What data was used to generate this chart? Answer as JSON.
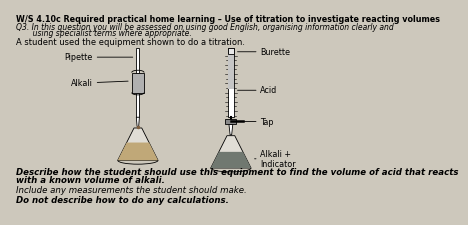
{
  "background_color": "#cdc8bc",
  "title_line": "W/S 4.10c Required practical home learning – Use of titration to investigate reacting volumes",
  "q3_line1": "Q3. In this question you will be assessed on using good English, organising information clearly and",
  "q3_line2": "       using specialist terms where appropriate.",
  "intro_line": "A student used the equipment shown to do a titration.",
  "desc_line1": "Describe how the student should use this equipment to find the volume of acid that reacts",
  "desc_line2": "with a known volume of alkali.",
  "include_line": "Include any measurements the student should make.",
  "donot_line": "Do not describe how to do any calculations.",
  "label_pipette": "Pipette",
  "label_alkali_left": "Alkali",
  "label_burette": "Burette",
  "label_acid": "Acid",
  "label_tap": "Tap",
  "label_alkali_indicator": "Alkali +\nIndicator"
}
